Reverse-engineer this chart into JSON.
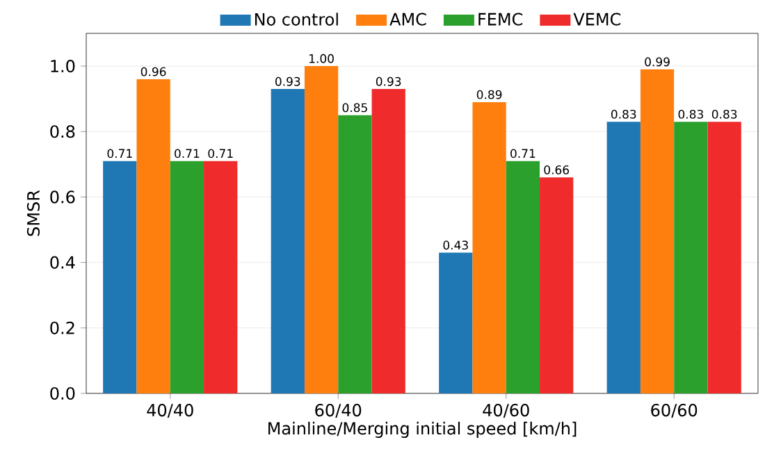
{
  "chart_data": {
    "type": "bar",
    "xlabel": "Mainline/Merging initial speed [km/h]",
    "ylabel": "SMSR",
    "categories": [
      "40/40",
      "60/40",
      "40/60",
      "60/60"
    ],
    "series": [
      {
        "name": "No control",
        "color": "#1f77b4",
        "values": [
          0.71,
          0.93,
          0.43,
          0.83
        ],
        "value_labels": [
          "0.71",
          "0.93",
          "0.43",
          "0.83"
        ]
      },
      {
        "name": "AMC",
        "color": "#ff7f0e",
        "values": [
          0.96,
          1.0,
          0.89,
          0.99
        ],
        "value_labels": [
          "0.96",
          "1.00",
          "0.89",
          "0.99"
        ]
      },
      {
        "name": "FEMC",
        "color": "#2ca02c",
        "values": [
          0.71,
          0.85,
          0.71,
          0.83
        ],
        "value_labels": [
          "0.71",
          "0.85",
          "0.71",
          "0.83"
        ]
      },
      {
        "name": "VEMC",
        "color": "#ef2b2b",
        "values": [
          0.71,
          0.93,
          0.66,
          0.83
        ],
        "value_labels": [
          "0.71",
          "0.93",
          "0.66",
          "0.83"
        ]
      }
    ],
    "ylim": [
      0,
      1.1
    ],
    "yticks": [
      {
        "value": 0,
        "label": "0.0"
      },
      {
        "value": 0.2,
        "label": "0.2"
      },
      {
        "value": 0.4,
        "label": "0.4"
      },
      {
        "value": 0.6,
        "label": "0.6"
      },
      {
        "value": 0.8,
        "label": "0.8"
      },
      {
        "value": 1.0,
        "label": "1.0"
      }
    ],
    "grid": "y",
    "legend": "top"
  }
}
